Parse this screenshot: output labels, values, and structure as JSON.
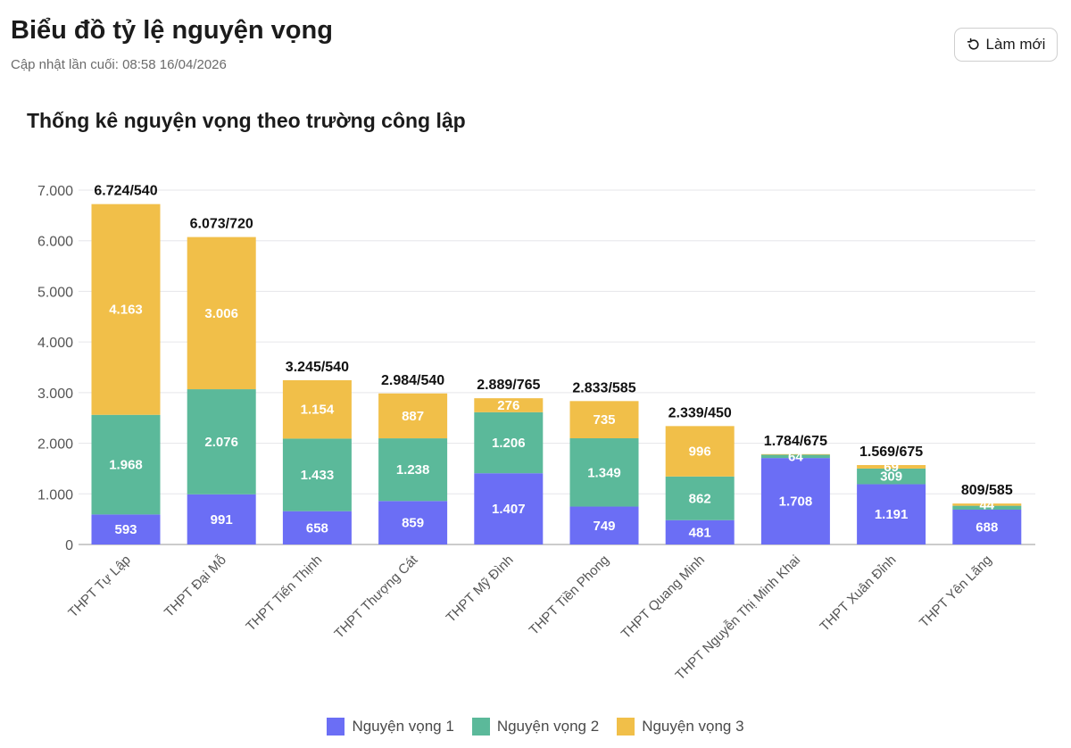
{
  "header": {
    "title": "Biểu đồ tỷ lệ nguyện vọng",
    "last_updated": "Cập nhật lần cuối: 08:58 16/04/2026",
    "refresh_label": "Làm mới",
    "refresh_icon": "refresh-icon"
  },
  "colors": {
    "nv1": "#6b6ef5",
    "nv2": "#5bb99a",
    "nv3": "#f1bf49",
    "grid": "#e6e6ea",
    "axis": "#555555"
  },
  "chart_data": {
    "type": "bar",
    "stacked": true,
    "title": "Thống kê nguyện vọng theo trường công lập",
    "xlabel": "",
    "ylabel": "",
    "ylim": [
      0,
      7000
    ],
    "yticks": [
      0,
      1000,
      2000,
      3000,
      4000,
      5000,
      6000,
      7000
    ],
    "ytick_labels": [
      "0",
      "1.000",
      "2.000",
      "3.000",
      "4.000",
      "5.000",
      "6.000",
      "7.000"
    ],
    "grid": true,
    "legend_position": "bottom",
    "categories": [
      "THPT Tự Lập",
      "THPT Đại Mỗ",
      "THPT Tiến Thịnh",
      "THPT Thượng Cát",
      "THPT Mỹ Đình",
      "THPT Tiền Phong",
      "THPT Quang Minh",
      "THPT Nguyễn Thị Minh Khai",
      "THPT Xuân Đỉnh",
      "THPT Yên Lãng"
    ],
    "series": [
      {
        "name": "Nguyện vọng 1",
        "values": [
          593,
          991,
          658,
          859,
          1407,
          749,
          481,
          1708,
          1191,
          688
        ],
        "labels": [
          "593",
          "991",
          "658",
          "859",
          "1.407",
          "749",
          "481",
          "1.708",
          "1.191",
          "688"
        ]
      },
      {
        "name": "Nguyện vọng 2",
        "values": [
          1968,
          2076,
          1433,
          1238,
          1206,
          1349,
          862,
          64,
          309,
          77
        ],
        "labels": [
          "1.968",
          "2.076",
          "1.433",
          "1.238",
          "1.206",
          "1.349",
          "862",
          "64",
          "309",
          ""
        ]
      },
      {
        "name": "Nguyện vọng 3",
        "values": [
          4163,
          3006,
          1154,
          887,
          276,
          735,
          996,
          12,
          69,
          44
        ],
        "labels": [
          "4.163",
          "3.006",
          "1.154",
          "887",
          "276",
          "735",
          "996",
          "",
          "69",
          "44"
        ]
      }
    ],
    "totals": [
      "6.724/540",
      "6.073/720",
      "3.245/540",
      "2.984/540",
      "2.889/765",
      "2.833/585",
      "2.339/450",
      "1.784/675",
      "1.569/675",
      "809/585"
    ]
  }
}
